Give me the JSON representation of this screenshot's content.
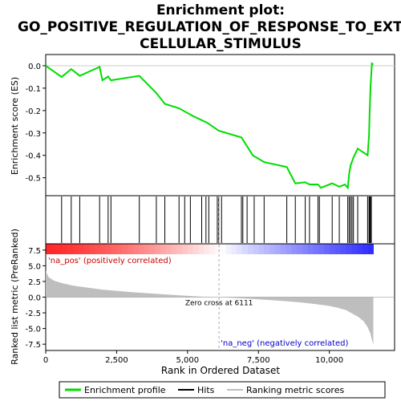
{
  "title_line1": "Enrichment plot:",
  "title_line2": "GO_POSITIVE_REGULATION_OF_RESPONSE_TO_EXTRA",
  "title_line3": "CELLULAR_STIMULUS",
  "colors": {
    "es_line": "#00dd00",
    "hits": "#000000",
    "metric_fill": "#bebebe",
    "pos_label": "#cc0000",
    "neg_label": "#0000cc",
    "zero_line": "#aaaaaa"
  },
  "chart_data": {
    "type": "line",
    "es_panel": {
      "ylabel": "Enrichment score (ES)",
      "ylim": [
        -0.58,
        0.05
      ],
      "yticks": [
        0.0,
        -0.1,
        -0.2,
        -0.3,
        -0.4,
        -0.5
      ],
      "ytick_labels": [
        "0.0",
        "-0.1",
        "-0.2",
        "-0.3",
        "-0.4",
        "-0.5"
      ],
      "x": [
        0,
        560,
        900,
        1200,
        1900,
        2000,
        2200,
        2300,
        3300,
        3900,
        4200,
        4700,
        5200,
        5700,
        6100,
        6900,
        7300,
        7700,
        8500,
        8800,
        9150,
        9300,
        9600,
        9700,
        10100,
        10350,
        10550,
        10650,
        10700,
        10750,
        10850,
        11000,
        11350,
        11400,
        11420,
        11450,
        11500,
        11550
      ],
      "y": [
        0.0,
        -0.05,
        -0.015,
        -0.045,
        -0.005,
        -0.065,
        -0.048,
        -0.065,
        -0.045,
        -0.122,
        -0.17,
        -0.19,
        -0.225,
        -0.255,
        -0.29,
        -0.32,
        -0.4,
        -0.43,
        -0.452,
        -0.525,
        -0.52,
        -0.53,
        -0.53,
        -0.545,
        -0.525,
        -0.54,
        -0.53,
        -0.545,
        -0.48,
        -0.445,
        -0.41,
        -0.37,
        -0.4,
        -0.31,
        -0.21,
        -0.1,
        0.01,
        0.005
      ]
    },
    "hits": [
      560,
      900,
      1200,
      1900,
      2200,
      2300,
      3300,
      3900,
      4200,
      4700,
      4900,
      5100,
      5500,
      5650,
      5750,
      6050,
      6100,
      6200,
      6900,
      6950,
      7100,
      7350,
      7700,
      8500,
      8800,
      9150,
      9300,
      9600,
      9650,
      10100,
      10350,
      10650,
      10700,
      10750,
      10800,
      10850,
      11000,
      11350,
      11400,
      11420,
      11450,
      11480
    ],
    "metric_panel": {
      "ylabel": "Ranked list metric (PreRanked)",
      "ylim": [
        -8.5,
        8.5
      ],
      "yticks": [
        7.5,
        5.0,
        2.5,
        0.0,
        -2.5,
        -5.0,
        -7.5
      ],
      "ytick_labels": [
        "7.5",
        "5.0",
        "2.5",
        "0.0",
        "-2.5",
        "-5.0",
        "-7.5"
      ],
      "x": [
        0,
        100,
        300,
        600,
        1000,
        1500,
        2000,
        2500,
        3000,
        3500,
        4000,
        4500,
        5000,
        5500,
        6111,
        6500,
        7000,
        7500,
        8000,
        8500,
        9000,
        9500,
        10000,
        10300,
        10600,
        10800,
        11000,
        11200,
        11350,
        11450,
        11500,
        11550
      ],
      "y": [
        4.2,
        3.2,
        2.6,
        2.2,
        1.8,
        1.5,
        1.2,
        1.0,
        0.8,
        0.65,
        0.5,
        0.35,
        0.2,
        0.08,
        0.0,
        -0.1,
        -0.2,
        -0.35,
        -0.5,
        -0.65,
        -0.85,
        -1.1,
        -1.4,
        -1.7,
        -2.1,
        -2.6,
        -3.1,
        -3.8,
        -4.8,
        -5.8,
        -6.8,
        -7.5
      ]
    },
    "xlim": [
      0,
      12300
    ],
    "xticks": [
      0,
      2500,
      5000,
      7500,
      10000
    ],
    "xtick_labels": [
      "0",
      "2,500",
      "5,000",
      "7,500",
      "10,000"
    ],
    "xlabel": "Rank in Ordered Dataset",
    "zero_cross": 6111,
    "zero_cross_label": "Zero cross at 6111",
    "pos_label": "'na_pos' (positively correlated)",
    "neg_label": "'na_neg' (negatively correlated)",
    "legend": [
      "Enrichment profile",
      "Hits",
      "Ranking metric scores"
    ],
    "legend_position": "bottom"
  }
}
